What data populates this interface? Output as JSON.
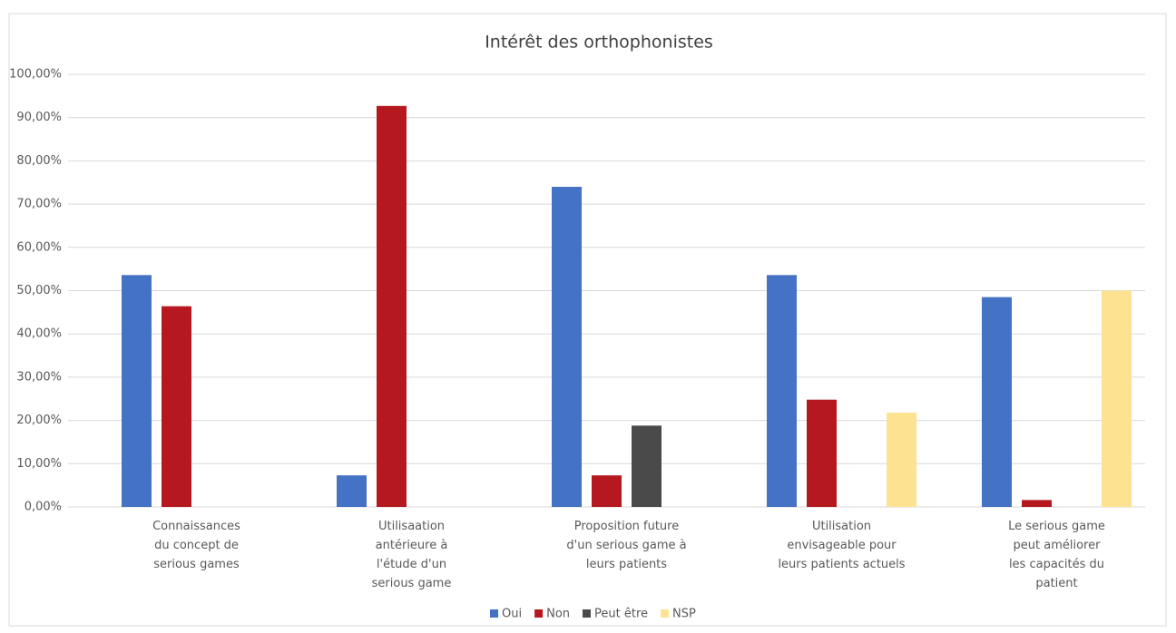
{
  "chart_data": {
    "type": "bar",
    "title": "Intérêt des orthophonistes",
    "categories": [
      "Connaissances\ndu concept de\nserious games",
      "Utilisaation\nantérieure à\nl'étude d'un\nserious game",
      "Proposition future\nd'un serious game à\nleurs patients",
      "Utilisation\nenvisageable pour\nleurs patients actuels",
      "Le serious game\npeut améliorer\nles capacités du\npatient"
    ],
    "series": [
      {
        "name": "Oui",
        "color": "#4472c4",
        "values": [
          53.6,
          7.3,
          74.0,
          53.6,
          48.5
        ]
      },
      {
        "name": "Non",
        "color": "#b5191f",
        "values": [
          46.4,
          92.7,
          7.3,
          24.8,
          1.6
        ]
      },
      {
        "name": "Peut être",
        "color": "#4a4a4a",
        "values": [
          0,
          0,
          18.8,
          0,
          0
        ]
      },
      {
        "name": "NSP",
        "color": "#fde391",
        "values": [
          0,
          0,
          0,
          21.8,
          50.0
        ]
      }
    ],
    "ylim": [
      0,
      100
    ],
    "yticks": [
      {
        "value": 0,
        "label": "0,00%"
      },
      {
        "value": 10,
        "label": "10,00%"
      },
      {
        "value": 20,
        "label": "20,00%"
      },
      {
        "value": 30,
        "label": "30,00%"
      },
      {
        "value": 40,
        "label": "40,00%"
      },
      {
        "value": 50,
        "label": "50,00%"
      },
      {
        "value": 60,
        "label": "60,00%"
      },
      {
        "value": 70,
        "label": "70,00%"
      },
      {
        "value": 80,
        "label": "80,00%"
      },
      {
        "value": 90,
        "label": "90,00%"
      },
      {
        "value": 100,
        "label": "100,00%"
      }
    ],
    "grid": true,
    "legend": "bottom"
  }
}
